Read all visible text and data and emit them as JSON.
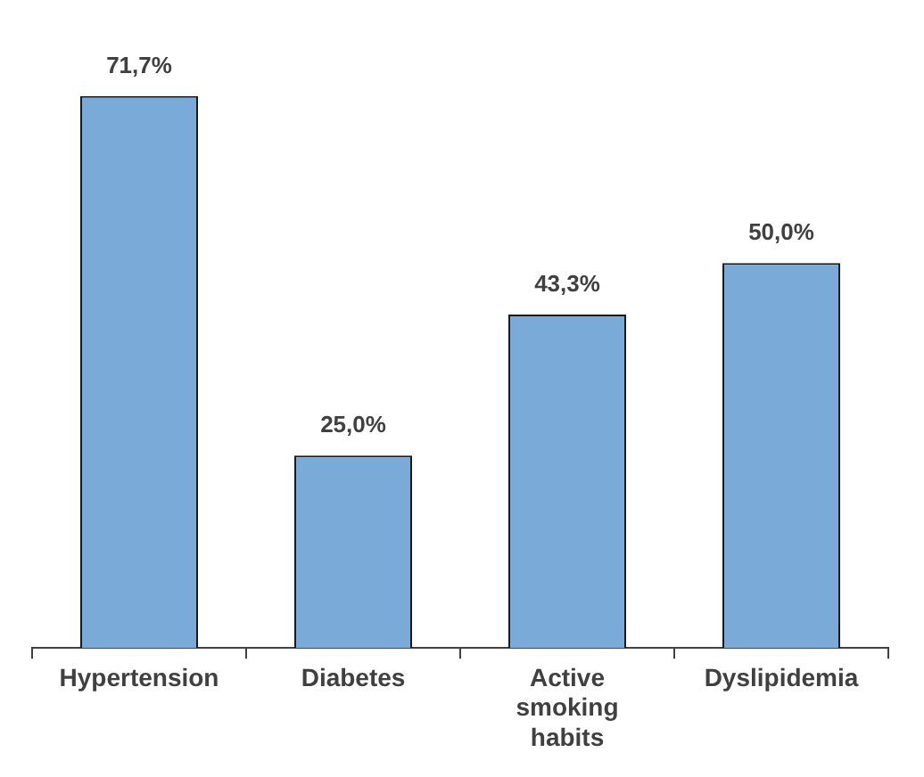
{
  "chart_data": {
    "type": "bar",
    "categories": [
      "Hypertension",
      "Diabetes",
      "Active smoking habits",
      "Dyslipidemia"
    ],
    "values": [
      71.7,
      25.0,
      43.3,
      50.0
    ],
    "value_labels": [
      "71,7%",
      "25,0%",
      "43,3%",
      "50,0%"
    ],
    "color": "#7aaad8",
    "grid": false,
    "legend": false,
    "tick_labels": "x"
  }
}
